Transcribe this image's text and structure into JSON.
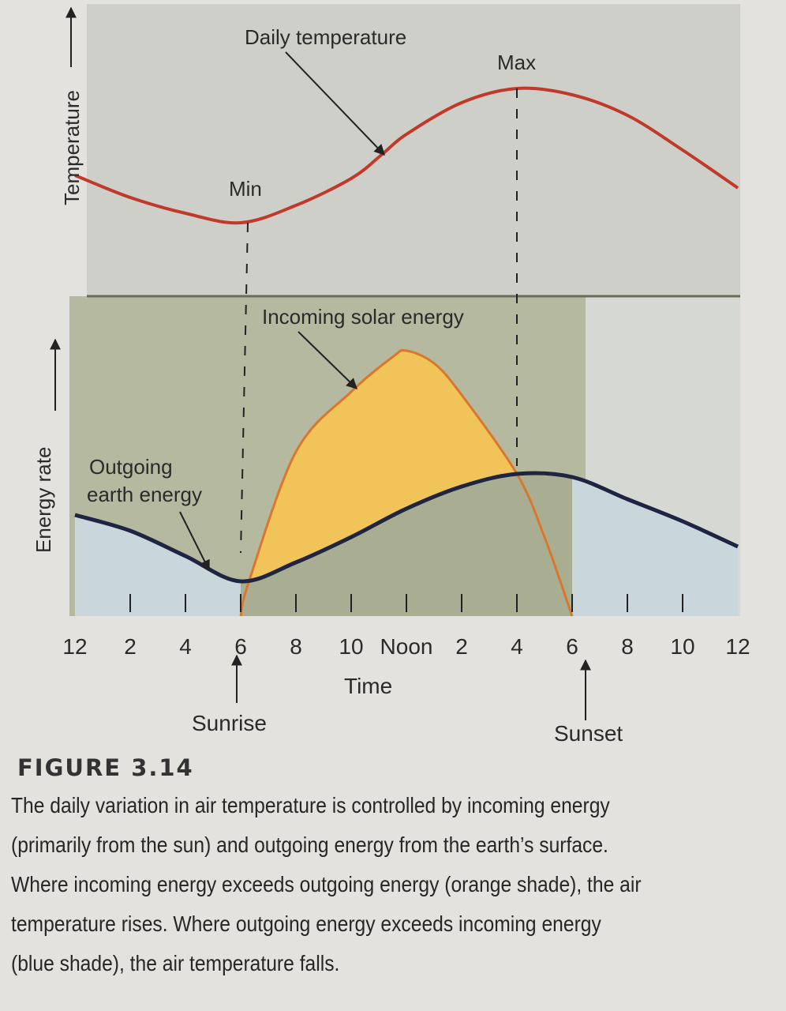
{
  "chart_data": {
    "type": "line",
    "panels": [
      {
        "ylabel": "Temperature",
        "series": [
          {
            "name": "Daily temperature",
            "color": "#c0392b",
            "x": [
              0,
              2,
              4,
              6,
              8,
              10,
              11.1,
              12,
              14,
              16,
              18,
              20,
              22,
              24
            ],
            "y": [
              39,
              25,
              15,
              9,
              20,
              37,
              52,
              65,
              85,
              94,
              90,
              77,
              55,
              31
            ]
          }
        ],
        "annotations": {
          "min": "Min",
          "max": "Max",
          "min_x": 6.4,
          "max_x": 16
        }
      },
      {
        "ylabel": "Energy rate",
        "series": [
          {
            "name": "Incoming solar energy",
            "color": "#d9782d",
            "fill": "#f0c458",
            "x": [
              6,
              6.3,
              8,
              10,
              11.5,
              12,
              13,
              14,
              16,
              17,
              18
            ],
            "y": [
              0,
              11,
              52,
              71,
              82,
              84,
              80,
              70,
              45,
              25,
              0
            ]
          },
          {
            "name": "Outgoing earth energy",
            "color": "#1f2440",
            "x": [
              0,
              2,
              4,
              6,
              8,
              10,
              12,
              14,
              16,
              18,
              20,
              22,
              24
            ],
            "y": [
              32,
              27,
              19,
              11,
              17,
              25,
              34,
              41,
              45,
              44,
              37,
              30,
              22
            ]
          }
        ]
      }
    ],
    "xlabel": "Time",
    "x_ticks": [
      {
        "h": 0,
        "label": "12"
      },
      {
        "h": 2,
        "label": "2"
      },
      {
        "h": 4,
        "label": "4"
      },
      {
        "h": 6,
        "label": "6"
      },
      {
        "h": 8,
        "label": "8"
      },
      {
        "h": 10,
        "label": "10"
      },
      {
        "h": 12,
        "label": "Noon"
      },
      {
        "h": 14,
        "label": "2"
      },
      {
        "h": 16,
        "label": "4"
      },
      {
        "h": 18,
        "label": "6"
      },
      {
        "h": 20,
        "label": "8"
      },
      {
        "h": 22,
        "label": "10"
      },
      {
        "h": 24,
        "label": "12"
      }
    ],
    "xlim": [
      0,
      24
    ],
    "events": [
      {
        "label": "Sunrise",
        "h": 6
      },
      {
        "label": "Sunset",
        "h": 18
      }
    ],
    "colors": {
      "orange_shade": "#f0c458",
      "blue_shade": "#c9d6dc",
      "green_panel": "#b5b9a0",
      "top_panel": "#cfcfca"
    }
  },
  "labels": {
    "daily_temperature": "Daily temperature",
    "incoming": "Incoming solar energy",
    "outgoing_1": "Outgoing",
    "outgoing_2": "earth energy"
  },
  "caption": {
    "title": "FIGURE 3.14",
    "lines": [
      "The daily variation in air temperature is controlled by incoming energy",
      "(primarily from the sun) and outgoing energy from the earth’s surface.",
      "Where incoming energy exceeds outgoing energy (orange shade), the air",
      "temperature rises. Where outgoing energy exceeds incoming energy",
      "(blue shade), the air temperature falls."
    ]
  }
}
